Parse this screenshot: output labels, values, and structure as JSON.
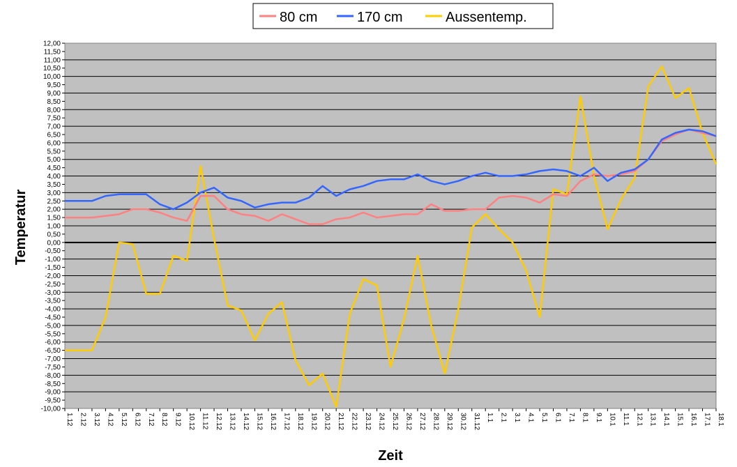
{
  "chart_data": {
    "type": "line",
    "xlabel": "Zeit",
    "ylabel": "Temperatur",
    "ylim": [
      -10,
      12
    ],
    "ytick_step": 0.5,
    "grid": true,
    "plot_background": "#c0c0c0",
    "legend_position": "top-center",
    "categories": [
      "1.12",
      "2.12",
      "3.12",
      "4.12",
      "5.12",
      "6.12",
      "7.12",
      "8.12",
      "9.12",
      "10.12",
      "11.12",
      "12.12",
      "13.12",
      "14.12",
      "15.12",
      "16.12",
      "17.12",
      "18.12",
      "19.12",
      "20.12",
      "21.12",
      "22.12",
      "23.12",
      "24.12",
      "25.12",
      "26.12",
      "27.12",
      "28.12",
      "29.12",
      "30.12",
      "31.12",
      "1.1",
      "2.1",
      "3.1",
      "4.1",
      "5.1",
      "6.1",
      "7.1",
      "8.1",
      "9.1",
      "10.1",
      "11.1",
      "12.1",
      "13.1",
      "14.1",
      "15.1",
      "16.1",
      "17.1",
      "18.1"
    ],
    "series": [
      {
        "name": "80 cm",
        "color": "#ff8080",
        "values": [
          1.5,
          1.5,
          1.5,
          1.6,
          1.7,
          2.0,
          2.0,
          1.8,
          1.5,
          1.3,
          2.8,
          2.8,
          2.0,
          1.7,
          1.6,
          1.3,
          1.7,
          1.4,
          1.1,
          1.1,
          1.4,
          1.5,
          1.8,
          1.5,
          1.6,
          1.7,
          1.7,
          2.3,
          1.9,
          1.9,
          2.0,
          2.0,
          2.7,
          2.8,
          2.7,
          2.4,
          2.9,
          2.8,
          3.7,
          4.1,
          4.0,
          4.1,
          4.3,
          5.0,
          6.1,
          6.5,
          6.8,
          6.6,
          6.4
        ]
      },
      {
        "name": "170 cm",
        "color": "#3366ff",
        "values": [
          2.5,
          2.5,
          2.5,
          2.8,
          2.9,
          2.9,
          2.9,
          2.3,
          2.0,
          2.4,
          3.0,
          3.3,
          2.7,
          2.5,
          2.1,
          2.3,
          2.4,
          2.4,
          2.7,
          3.4,
          2.8,
          3.2,
          3.4,
          3.7,
          3.8,
          3.8,
          4.1,
          3.7,
          3.5,
          3.7,
          4.0,
          4.2,
          4.0,
          4.0,
          4.1,
          4.3,
          4.4,
          4.3,
          4.0,
          4.5,
          3.7,
          4.2,
          4.4,
          5.0,
          6.2,
          6.6,
          6.8,
          6.7,
          6.4
        ]
      },
      {
        "name": "Aussentemp.",
        "color": "#ffcc00",
        "values": [
          -6.5,
          -6.5,
          -6.5,
          -4.5,
          0.0,
          -0.1,
          -3.1,
          -3.1,
          -0.8,
          -1.1,
          4.6,
          0.2,
          -3.8,
          -4.1,
          -5.9,
          -4.3,
          -3.6,
          -7.1,
          -8.6,
          -7.9,
          -9.9,
          -4.3,
          -2.2,
          -2.6,
          -7.5,
          -4.6,
          -0.8,
          -5.0,
          -7.9,
          -4.0,
          0.9,
          1.7,
          0.8,
          0.0,
          -1.7,
          -4.5,
          3.2,
          2.9,
          8.8,
          4.0,
          0.8,
          2.6,
          3.9,
          9.4,
          10.6,
          8.7,
          9.3,
          6.6,
          4.7
        ]
      }
    ]
  }
}
